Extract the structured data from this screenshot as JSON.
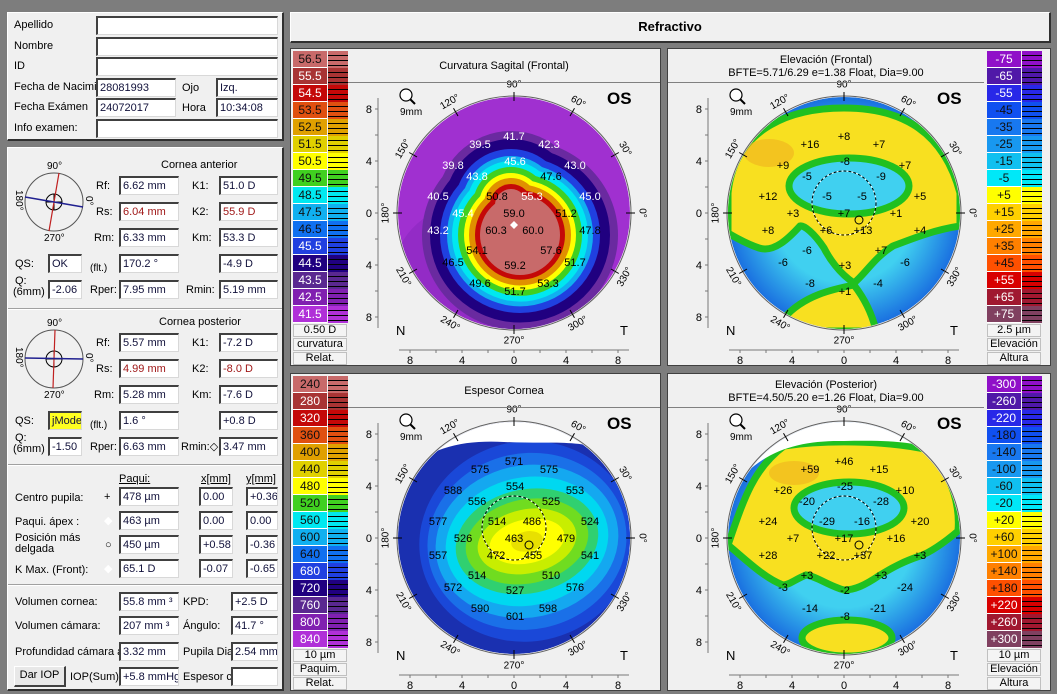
{
  "patient": {
    "apellido_label": "Apellido",
    "apellido": "",
    "nombre_label": "Nombre",
    "nombre": "",
    "id_label": "ID",
    "id": "",
    "fecha_nac_label": "Fecha de Nacimi",
    "fecha_nac": "28081993",
    "ojo_label": "Ojo",
    "ojo": "Izq.",
    "fecha_exam_label": "Fecha Exámen",
    "fecha_exam": "24072017",
    "hora_label": "Hora",
    "hora": "10:34:08",
    "info_label": "Info examen:",
    "info": ""
  },
  "compass_labels": {
    "top": "90°",
    "bottom": "270°",
    "left": "180°",
    "right": "0°"
  },
  "anterior": {
    "title": "Cornea anterior",
    "rf_label": "Rf:",
    "rf": "6.62 mm",
    "k1_label": "K1:",
    "k1": "51.0 D",
    "rs_label": "Rs:",
    "rs": "6.04 mm",
    "k2_label": "K2:",
    "k2": "55.9 D",
    "rm_label": "Rm:",
    "rm": "6.33 mm",
    "km_label": "Km:",
    "km": "53.3 D",
    "qs_label": "QS:",
    "qs": "OK",
    "flt_label": "(flt.)",
    "axis": "170.2 °",
    "astig": "-4.9 D",
    "q_label": "Q:",
    "q_sub": "(6mm)",
    "q": "-2.06",
    "rper_label": "Rper:",
    "rper": "7.95 mm",
    "rmin_label": "Rmin:",
    "rmin": "5.19 mm"
  },
  "posterior": {
    "title": "Cornea posterior",
    "rf_label": "Rf:",
    "rf": "5.57 mm",
    "k1_label": "K1:",
    "k1": "-7.2 D",
    "rs_label": "Rs:",
    "rs": "4.99 mm",
    "k2_label": "K2:",
    "k2": "-8.0 D",
    "rm_label": "Rm:",
    "rm": "5.28 mm",
    "km_label": "Km:",
    "km": "-7.6 D",
    "qs_label": "QS:",
    "qs": "jMode",
    "flt_label": "(flt.)",
    "axis": "1.6 °",
    "astig": "+0.8 D",
    "q_label": "Q:",
    "q_sub": "(6mm)",
    "q": "-1.50",
    "rper_label": "Rper:",
    "rper": "6.63 mm",
    "rmin_label": "Rmin:◇",
    "rmin": "3.47 mm"
  },
  "pachy": {
    "col_paqui": "Paqui:",
    "col_x": "x[mm]",
    "col_y": "y[mm]",
    "rows": [
      {
        "label": "Centro pupila:",
        "symbol": "+",
        "paqui": "478 µm",
        "x": "0.00",
        "y": "+0.36"
      },
      {
        "label": "Paqui. ápex :",
        "symbol": "◆",
        "paqui": "463 µm",
        "x": "0.00",
        "y": "0.00"
      },
      {
        "label": "Posición más delgada",
        "symbol": "○",
        "paqui": "450 µm",
        "x": "+0.58",
        "y": "-0.36"
      },
      {
        "label": "K Max. (Front):",
        "symbol": "◆",
        "paqui": "65.1 D",
        "x": "-0.07",
        "y": "-0.65"
      }
    ]
  },
  "volumes": {
    "vol_cornea_label": "Volumen cornea:",
    "vol_cornea": "55.8 mm ³",
    "kpd_label": "KPD:",
    "kpd": "+2.5 D",
    "vol_camara_label": "Volumen cámara:",
    "vol_camara": "207 mm ³",
    "angulo_label": "Ángulo:",
    "angulo": "41.7 °",
    "prof_label": "Profundidad cámara a",
    "prof": "3.32 mm",
    "pupila_label": "Pupila Dia",
    "pupila": "2.54 mm",
    "dar_iop": "Dar IOP",
    "iop_label": "IOP(Sum):",
    "iop": "+5.8 mmHg",
    "espesor_label": "Espesor c",
    "espesor": ""
  },
  "header": {
    "title": "Refractivo"
  },
  "map_common": {
    "eye": "OS",
    "zoom_label": "9mm",
    "nasal": "N",
    "temporal": "T",
    "degree_labels": [
      "0°",
      "30°",
      "60°",
      "90°",
      "120°",
      "150°",
      "180°",
      "210°",
      "240°",
      "270°",
      "300°",
      "330°"
    ],
    "axis_ticks": [
      "8",
      "4",
      "0",
      "4",
      "8"
    ],
    "colors": {
      "contour": "#20c020",
      "missing": "#ffffff"
    }
  },
  "chart_data": [
    {
      "type": "heatmap",
      "title": "Curvatura Sagital (Frontal)",
      "subtitle": "",
      "scale": {
        "values": [
          "56.5",
          "55.5",
          "54.5",
          "53.5",
          "52.5",
          "51.5",
          "50.5",
          "49.5",
          "48.5",
          "47.5",
          "46.5",
          "45.5",
          "44.5",
          "43.5",
          "42.5",
          "41.5"
        ],
        "colors": [
          "#c86a6a",
          "#a83434",
          "#c40808",
          "#e05010",
          "#e0a000",
          "#e0d000",
          "#ffff00",
          "#40d020",
          "#00e8f0",
          "#10b0f0",
          "#1070f0",
          "#2040e0",
          "#200080",
          "#5a2890",
          "#8020b0",
          "#b030d8"
        ],
        "step": "0.50 D",
        "type": "curvatura",
        "mode": "Relat."
      },
      "values": [
        "41.7",
        "39.5",
        "42.3",
        "39.8",
        "45.6",
        "43.0",
        "43.8",
        "47.6",
        "40.5",
        "50.8",
        "55.3",
        "45.0",
        "45.4",
        "59.0",
        "51.2",
        "43.2",
        "60.3",
        "60.0",
        "47.8",
        "54.1",
        "57.6",
        "46.5",
        "59.2",
        "51.7",
        "49.6",
        "53.3",
        "51.7"
      ]
    },
    {
      "type": "heatmap",
      "title": "Elevación (Frontal)",
      "subtitle": "BFTE=5.71/6.29 e=1.38 Float, Dia=9.00",
      "scale": {
        "values": [
          "-75",
          "-65",
          "-55",
          "-45",
          "-35",
          "-25",
          "-15",
          "-5",
          "+5",
          "+15",
          "+25",
          "+35",
          "+45",
          "+55",
          "+65",
          "+75"
        ],
        "colors": [
          "#9010c8",
          "#5018a8",
          "#2828e8",
          "#1050f0",
          "#1878f0",
          "#1898f0",
          "#10c0f0",
          "#00e8f8",
          "#ffff00",
          "#ffd000",
          "#ffa800",
          "#ff8000",
          "#ff5000",
          "#d80000",
          "#a01830",
          "#804060"
        ],
        "step": "2.5 µm",
        "type": "Elevación",
        "mode": "Altura"
      },
      "values": [
        "+8",
        "+16",
        "+7",
        "+9",
        "-8",
        "+7",
        "-5",
        "-9",
        "+12",
        "-5",
        "-5",
        "+5",
        "+3",
        "+7",
        "+1",
        "+8",
        "+6",
        "+13",
        "+4",
        "-6",
        "+7",
        "-6",
        "+3",
        "-6",
        "-8",
        "-4",
        "+1"
      ]
    },
    {
      "type": "heatmap",
      "title": "Espesor Cornea",
      "subtitle": "",
      "scale": {
        "values": [
          "240",
          "280",
          "320",
          "360",
          "400",
          "440",
          "480",
          "520",
          "560",
          "600",
          "640",
          "680",
          "720",
          "760",
          "800",
          "840"
        ],
        "colors": [
          "#c86a6a",
          "#a83434",
          "#c40808",
          "#e05010",
          "#e0a000",
          "#e0d000",
          "#ffff00",
          "#40d020",
          "#00e8f0",
          "#10b0f0",
          "#1070f0",
          "#2040e0",
          "#200080",
          "#5a2890",
          "#8020b0",
          "#b030d8"
        ],
        "step": "10 µm",
        "type": "Paquim.",
        "mode": "Relat."
      },
      "values": [
        "571",
        "575",
        "575",
        "588",
        "554",
        "553",
        "556",
        "525",
        "577",
        "514",
        "486",
        "524",
        "526",
        "463",
        "479",
        "557",
        "472",
        "455",
        "541",
        "514",
        "510",
        "572",
        "527",
        "576",
        "590",
        "598",
        "601"
      ]
    },
    {
      "type": "heatmap",
      "title": "Elevación (Posterior)",
      "subtitle": "BFTE=4.50/5.20 e=1.26 Float, Dia=9.00",
      "scale": {
        "values": [
          "-300",
          "-260",
          "-220",
          "-180",
          "-140",
          "-100",
          "-60",
          "-20",
          "+20",
          "+60",
          "+100",
          "+140",
          "+180",
          "+220",
          "+260",
          "+300"
        ],
        "colors": [
          "#9010c8",
          "#5018a8",
          "#2828e8",
          "#1050f0",
          "#1878f0",
          "#1898f0",
          "#10c0f0",
          "#00e8f8",
          "#ffff00",
          "#ffd000",
          "#ffa800",
          "#ff8000",
          "#ff5000",
          "#d80000",
          "#a01830",
          "#804060"
        ],
        "step": "10 µm",
        "type": "Elevación",
        "mode": "Altura"
      },
      "values": [
        "+46",
        "+59",
        "+15",
        "+26",
        "-25",
        "+10",
        "-20",
        "-28",
        "+24",
        "-29",
        "-16",
        "+20",
        "+7",
        "+17",
        "+16",
        "+28",
        "+22",
        "+37",
        "+3",
        "+3",
        "+3",
        "-3",
        "-2",
        "-24",
        "-14",
        "-21",
        "-8"
      ]
    }
  ]
}
